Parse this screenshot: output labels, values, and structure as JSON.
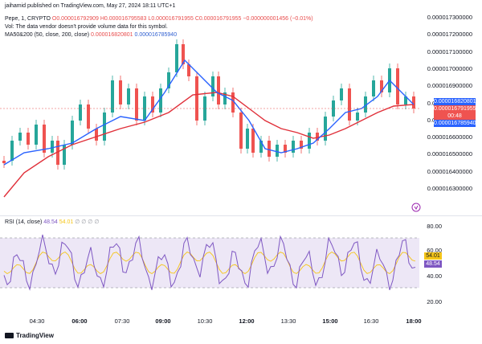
{
  "published": "jaihamid published on TradingView.com, May 27, 2024 18:11 UTC+1",
  "symbol_line": {
    "symbol": "Pepe, 1, CRYPTO",
    "o": "O0.000016792909",
    "h": "H0.000016795583",
    "l": "L0.000016791955",
    "c": "C0.000016791955",
    "chg": "−0.000000001456 (−0.01%)"
  },
  "vol_line": "Vol: The data vendor doesn't provide volume data for this symbol.",
  "ma_line": {
    "label": "MA50&200 (50, close, 200, close)",
    "v1": "0.000016820801",
    "v2": "0.000016785940"
  },
  "price_axis": [
    "0.000017300000",
    "0.000017200000",
    "0.000017100000",
    "0.000017000000",
    "0.000016900000",
    "0.000016800000",
    "0.000016700000",
    "0.000016600000",
    "0.000016500000",
    "0.000016400000",
    "0.000016300000"
  ],
  "price_tags": {
    "ma50": "0.000016820801",
    "last": "0.000016791955",
    "countdown": "00:48",
    "ma200": "0.000016785940"
  },
  "rsi_line": {
    "label": "RSI (14, close)",
    "v1": "48.54",
    "v2": "54.01",
    "rest": "∅ ∅ ∅ ∅"
  },
  "rsi_axis": [
    "80.00",
    "60.00",
    "40.00",
    "20.00"
  ],
  "rsi_tags": {
    "a": "54.01",
    "b": "48.54"
  },
  "time_axis": [
    "04:30",
    "06:00",
    "07:30",
    "09:00",
    "10:30",
    "12:00",
    "13:30",
    "15:00",
    "16:30",
    "18:00"
  ],
  "brand": "TradingView",
  "colors": {
    "up": "#26a69a",
    "down": "#ef5350",
    "ma50": "#2962ff",
    "ma200": "#e0303a",
    "rsi": "#7e57c2",
    "rsi_ma": "#f5c518",
    "rsi_band": "#ede7f6"
  }
}
